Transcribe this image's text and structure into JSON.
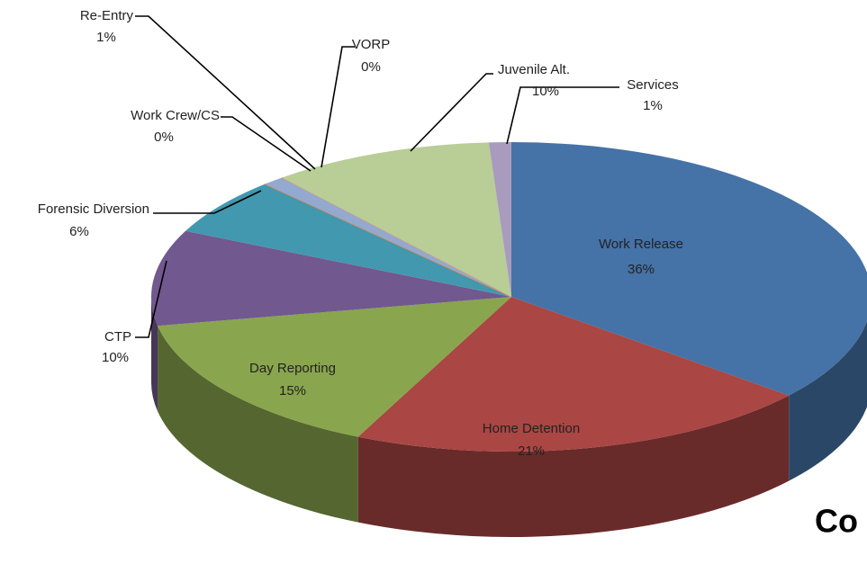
{
  "chart_data": {
    "type": "pie",
    "categories": [
      "Work Release",
      "Home Detention",
      "Day Reporting",
      "CTP",
      "Forensic Diversion",
      "Work Crew/CS",
      "Re-Entry",
      "VORP",
      "Juvenile Alt.",
      "Services"
    ],
    "values": [
      36,
      21,
      15,
      10,
      6,
      0,
      1,
      0,
      10,
      1
    ],
    "value_labels": [
      "36%",
      "21%",
      "15%",
      "10%",
      "6%",
      "0%",
      "1%",
      "0%",
      "10%",
      "1%"
    ],
    "colors": [
      "#4572a7",
      "#aa4643",
      "#89a54e",
      "#71588f",
      "#4198af",
      "#db843d",
      "#93a9cf",
      "#d19392",
      "#b9cd96",
      "#a99bbd"
    ],
    "annotation": "Co"
  }
}
